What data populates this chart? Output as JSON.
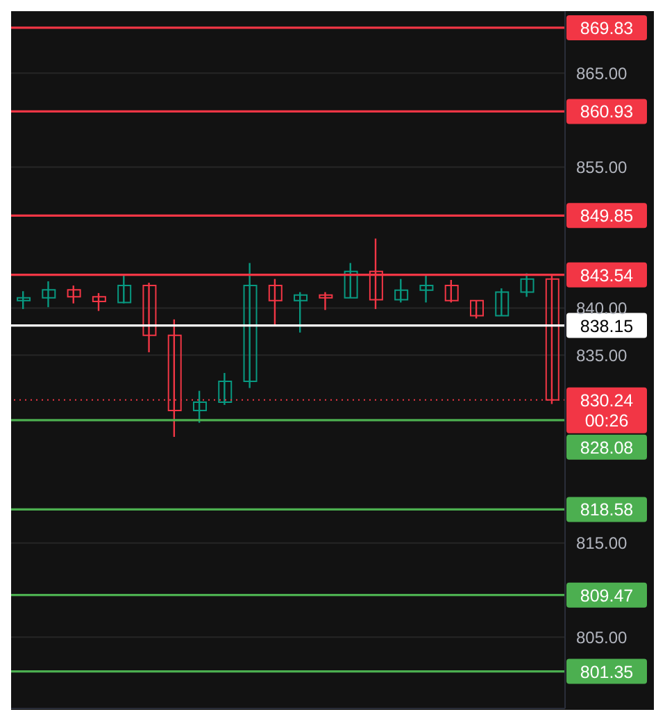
{
  "chart_data": {
    "type": "candlestick",
    "categories": [
      null,
      null,
      null,
      null,
      null,
      null,
      null,
      null,
      null,
      null,
      null,
      null,
      null,
      null,
      null,
      null,
      null,
      null,
      null,
      null,
      null,
      null
    ],
    "ohlc": [
      [
        840.8,
        841.8,
        839.9,
        841.1
      ],
      [
        841.1,
        842.85,
        840.1,
        841.95
      ],
      [
        841.95,
        842.4,
        840.5,
        841.2
      ],
      [
        841.2,
        841.6,
        839.7,
        840.7
      ],
      [
        840.6,
        843.6,
        840.5,
        842.4
      ],
      [
        842.4,
        842.7,
        835.3,
        837.1
      ],
      [
        837.1,
        838.8,
        826.3,
        829.1
      ],
      [
        829.1,
        831.2,
        827.8,
        830.0
      ],
      [
        830.0,
        833.1,
        829.7,
        832.2
      ],
      [
        832.2,
        844.8,
        831.5,
        842.4
      ],
      [
        842.4,
        843.1,
        838.2,
        840.8
      ],
      [
        840.8,
        841.7,
        837.4,
        841.4
      ],
      [
        841.4,
        841.7,
        839.8,
        841.1
      ],
      [
        841.1,
        844.8,
        841.1,
        843.9
      ],
      [
        843.9,
        847.4,
        839.9,
        840.9
      ],
      [
        840.9,
        843.1,
        840.6,
        841.9
      ],
      [
        841.9,
        843.6,
        840.6,
        842.4
      ],
      [
        842.4,
        843.0,
        840.6,
        840.8
      ],
      [
        840.8,
        840.8,
        838.9,
        839.2
      ],
      [
        839.2,
        842.1,
        839.2,
        841.7
      ],
      [
        841.7,
        843.7,
        841.2,
        843.1
      ],
      [
        843.1,
        843.6,
        829.8,
        830.24
      ]
    ],
    "colors": [
      "#089981",
      "#089981",
      "#f23645",
      "#f23645",
      "#089981",
      "#f23645",
      "#f23645",
      "#089981",
      "#089981",
      "#089981",
      "#f23645",
      "#089981",
      "#f23645",
      "#089981",
      "#f23645",
      "#089981",
      "#089981",
      "#f23645",
      "#f23645",
      "#089981",
      "#089981",
      "#f23645"
    ],
    "ylim": [
      797.4,
      871.6
    ],
    "yticks": [
      {
        "value": 805,
        "label": "805.00"
      },
      {
        "value": 815,
        "label": "815.00"
      },
      {
        "value": 835,
        "label": "835.00"
      },
      {
        "value": 840,
        "label": "840.00"
      },
      {
        "value": 855,
        "label": "855.00"
      },
      {
        "value": 865,
        "label": "865.00"
      }
    ],
    "grid": "y",
    "tick_labels": "y",
    "ref_lines": [
      {
        "axis": "y",
        "value": 869.83,
        "label": "869.83",
        "color": "#f23645"
      },
      {
        "axis": "y",
        "value": 860.93,
        "label": "860.93",
        "color": "#f23645"
      },
      {
        "axis": "y",
        "value": 849.85,
        "label": "849.85",
        "color": "#f23645"
      },
      {
        "axis": "y",
        "value": 843.54,
        "label": "843.54",
        "color": "#f23645"
      },
      {
        "axis": "y",
        "value": 838.15,
        "label": "838.15",
        "color": "#ffffff"
      },
      {
        "axis": "y",
        "value": 830.24,
        "label": "830.24",
        "color": "#f23645",
        "line_style": "dotted"
      },
      {
        "axis": "y",
        "value": 828.08,
        "label": "828.08",
        "color": "#4caf50"
      },
      {
        "axis": "y",
        "value": 818.58,
        "label": "818.58",
        "color": "#4caf50"
      },
      {
        "axis": "y",
        "value": 809.47,
        "label": "809.47",
        "color": "#4caf50"
      },
      {
        "axis": "y",
        "value": 801.35,
        "label": "801.35",
        "color": "#4caf50"
      }
    ],
    "annotations": [
      "00:26"
    ]
  }
}
